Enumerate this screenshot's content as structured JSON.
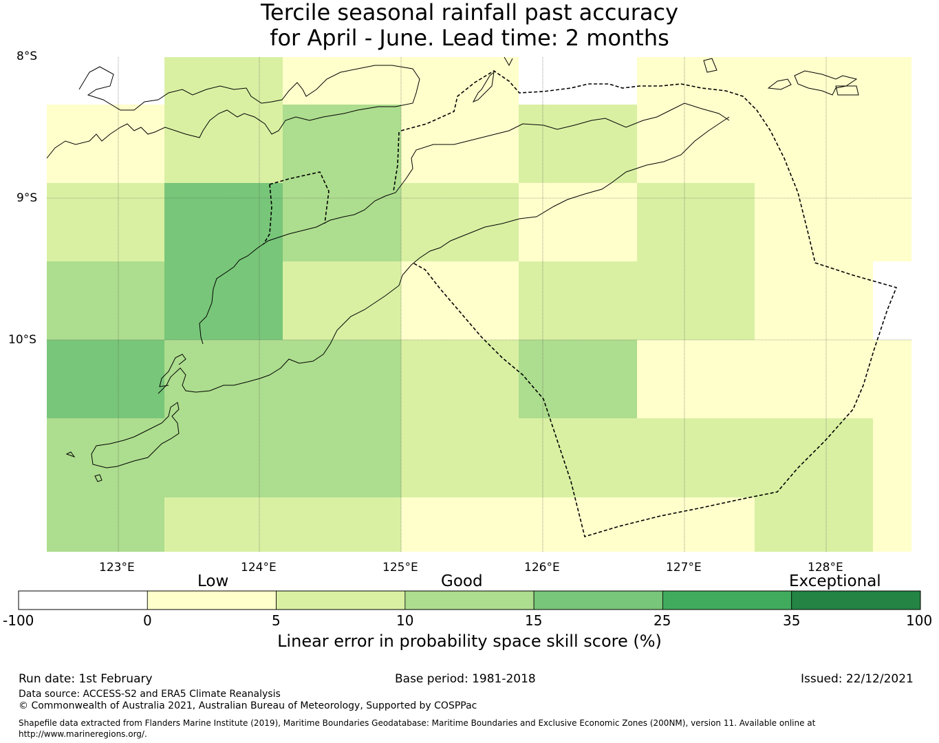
{
  "title": {
    "line1": "Tercile seasonal rainfall past accuracy",
    "line2": "for April - June. Lead time: 2 months"
  },
  "axes": {
    "lat_labels": [
      "8°S",
      "9°S",
      "10°S"
    ],
    "lon_labels": [
      "123°E",
      "124°E",
      "125°E",
      "126°E",
      "127°E",
      "128°E"
    ]
  },
  "colorbar": {
    "category_labels": [
      "Low",
      "Good",
      "Exceptional"
    ],
    "tick_labels": [
      "-100",
      "0",
      "5",
      "10",
      "15",
      "25",
      "35",
      "100"
    ],
    "colors": [
      "#ffffff",
      "#ffffcc",
      "#d9f0a3",
      "#addd8e",
      "#78c679",
      "#41ab5d",
      "#238443"
    ],
    "title": "Linear error in probability space skill score (%)"
  },
  "map_grid": {
    "cell_colors_rows": [
      [
        "#ffffff",
        "#d9f0a3",
        "#ffffcc",
        "#ffffcc",
        "#ffffff",
        "#ffffcc",
        "#ffffcc",
        "#ffffcc"
      ],
      [
        "#ffffcc",
        "#d9f0a3",
        "#addd8e",
        "#ffffcc",
        "#d9f0a3",
        "#ffffcc",
        "#ffffcc",
        "#ffffcc"
      ],
      [
        "#d9f0a3",
        "#78c679",
        "#addd8e",
        "#d9f0a3",
        "#ffffcc",
        "#d9f0a3",
        "#ffffcc",
        "#ffffcc"
      ],
      [
        "#addd8e",
        "#78c679",
        "#d9f0a3",
        "#ffffcc",
        "#d9f0a3",
        "#d9f0a3",
        "#ffffcc",
        "#ffffff"
      ],
      [
        "#78c679",
        "#addd8e",
        "#addd8e",
        "#d9f0a3",
        "#addd8e",
        "#ffffcc",
        "#ffffcc",
        "#ffffcc"
      ],
      [
        "#addd8e",
        "#addd8e",
        "#addd8e",
        "#d9f0a3",
        "#d9f0a3",
        "#d9f0a3",
        "#d9f0a3",
        "#ffffcc"
      ],
      [
        "#addd8e",
        "#d9f0a3",
        "#d9f0a3",
        "#ffffcc",
        "#ffffcc",
        "#ffffcc",
        "#d9f0a3",
        "#ffffcc"
      ]
    ]
  },
  "footer": {
    "run_date": "Run date: 1st February",
    "base_period": "Base period: 1981-2018",
    "issued": "Issued: 22/12/2021",
    "data_source": "Data source: ACCESS-S2 and ERA5 Climate Reanalysis",
    "copyright": "© Commonwealth of Australia 2021, Australian Bureau of Meteorology, Supported by COSPPac",
    "shapefile_line1": "Shapefile data extracted from Flanders Marine Institute (2019), Maritime Boundaries Geodatabase: Maritime Boundaries and Exclusive Economic Zones (200NM), version 11. Available online at",
    "shapefile_line2": "http://www.marineregions.org/."
  }
}
